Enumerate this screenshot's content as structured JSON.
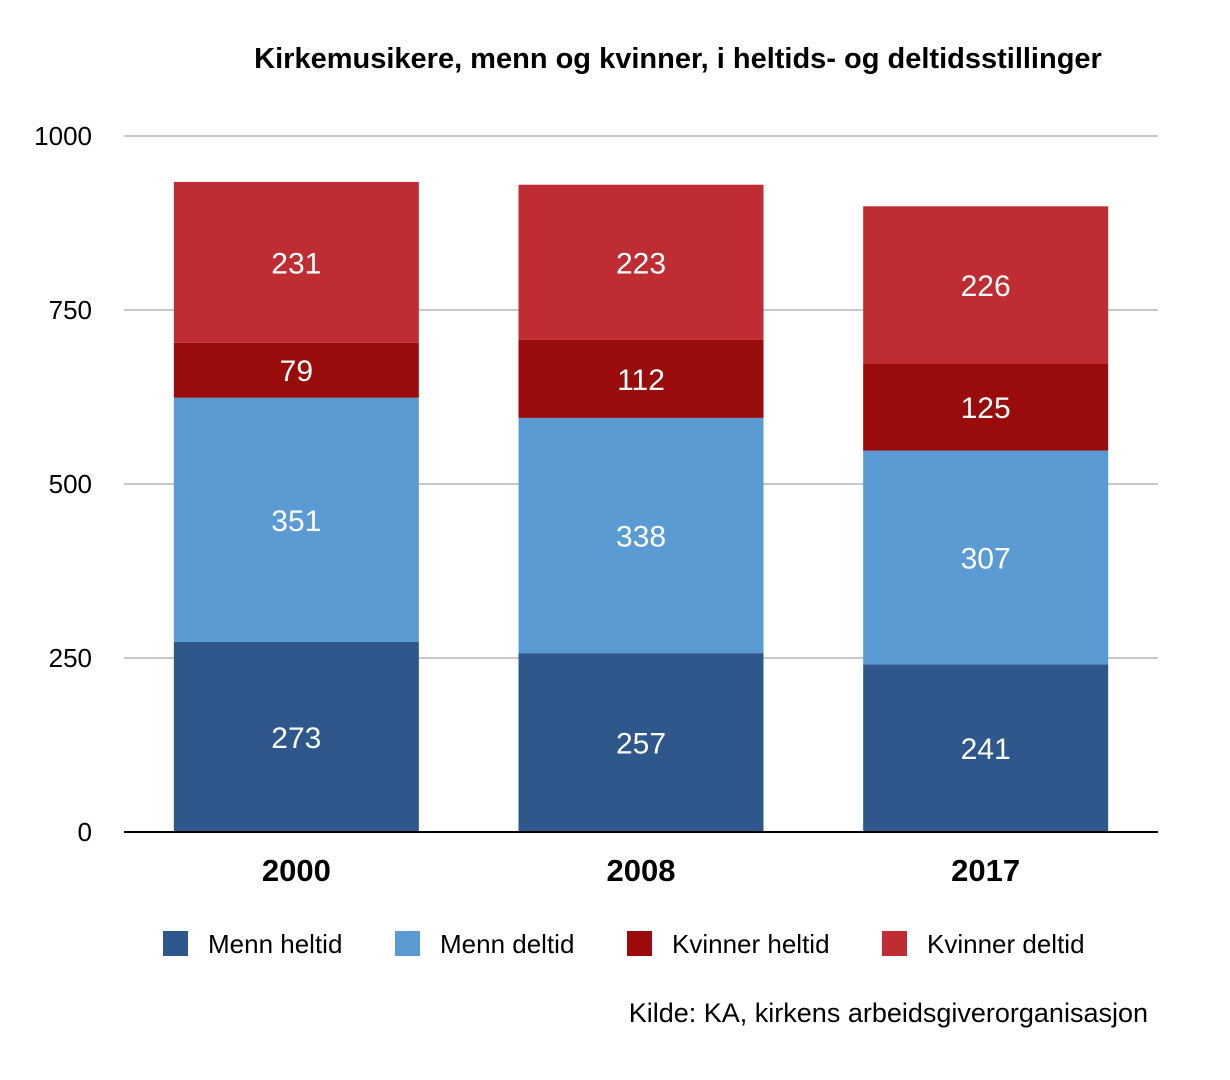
{
  "chart_data": {
    "type": "bar",
    "stacked": true,
    "title": "Kirkemusikere, menn og kvinner, i heltids- og deltidsstillinger",
    "categories": [
      "2000",
      "2008",
      "2017"
    ],
    "series": [
      {
        "name": "Menn heltid",
        "values": [
          273,
          257,
          241
        ],
        "color": "#2e578b"
      },
      {
        "name": "Menn deltid",
        "values": [
          351,
          338,
          307
        ],
        "color": "#5b9bd3"
      },
      {
        "name": "Kvinner heltid",
        "values": [
          79,
          112,
          125
        ],
        "color": "#9a0b0b"
      },
      {
        "name": "Kvinner deltid",
        "values": [
          231,
          223,
          226
        ],
        "color": "#bf2c31"
      }
    ],
    "ylim": [
      0,
      1000
    ],
    "yticks": [
      0,
      250,
      500,
      750,
      1000
    ],
    "grid": true,
    "legend": "bottom",
    "source": "Kilde: KA, kirkens arbeidsgiverorganisasjon"
  }
}
